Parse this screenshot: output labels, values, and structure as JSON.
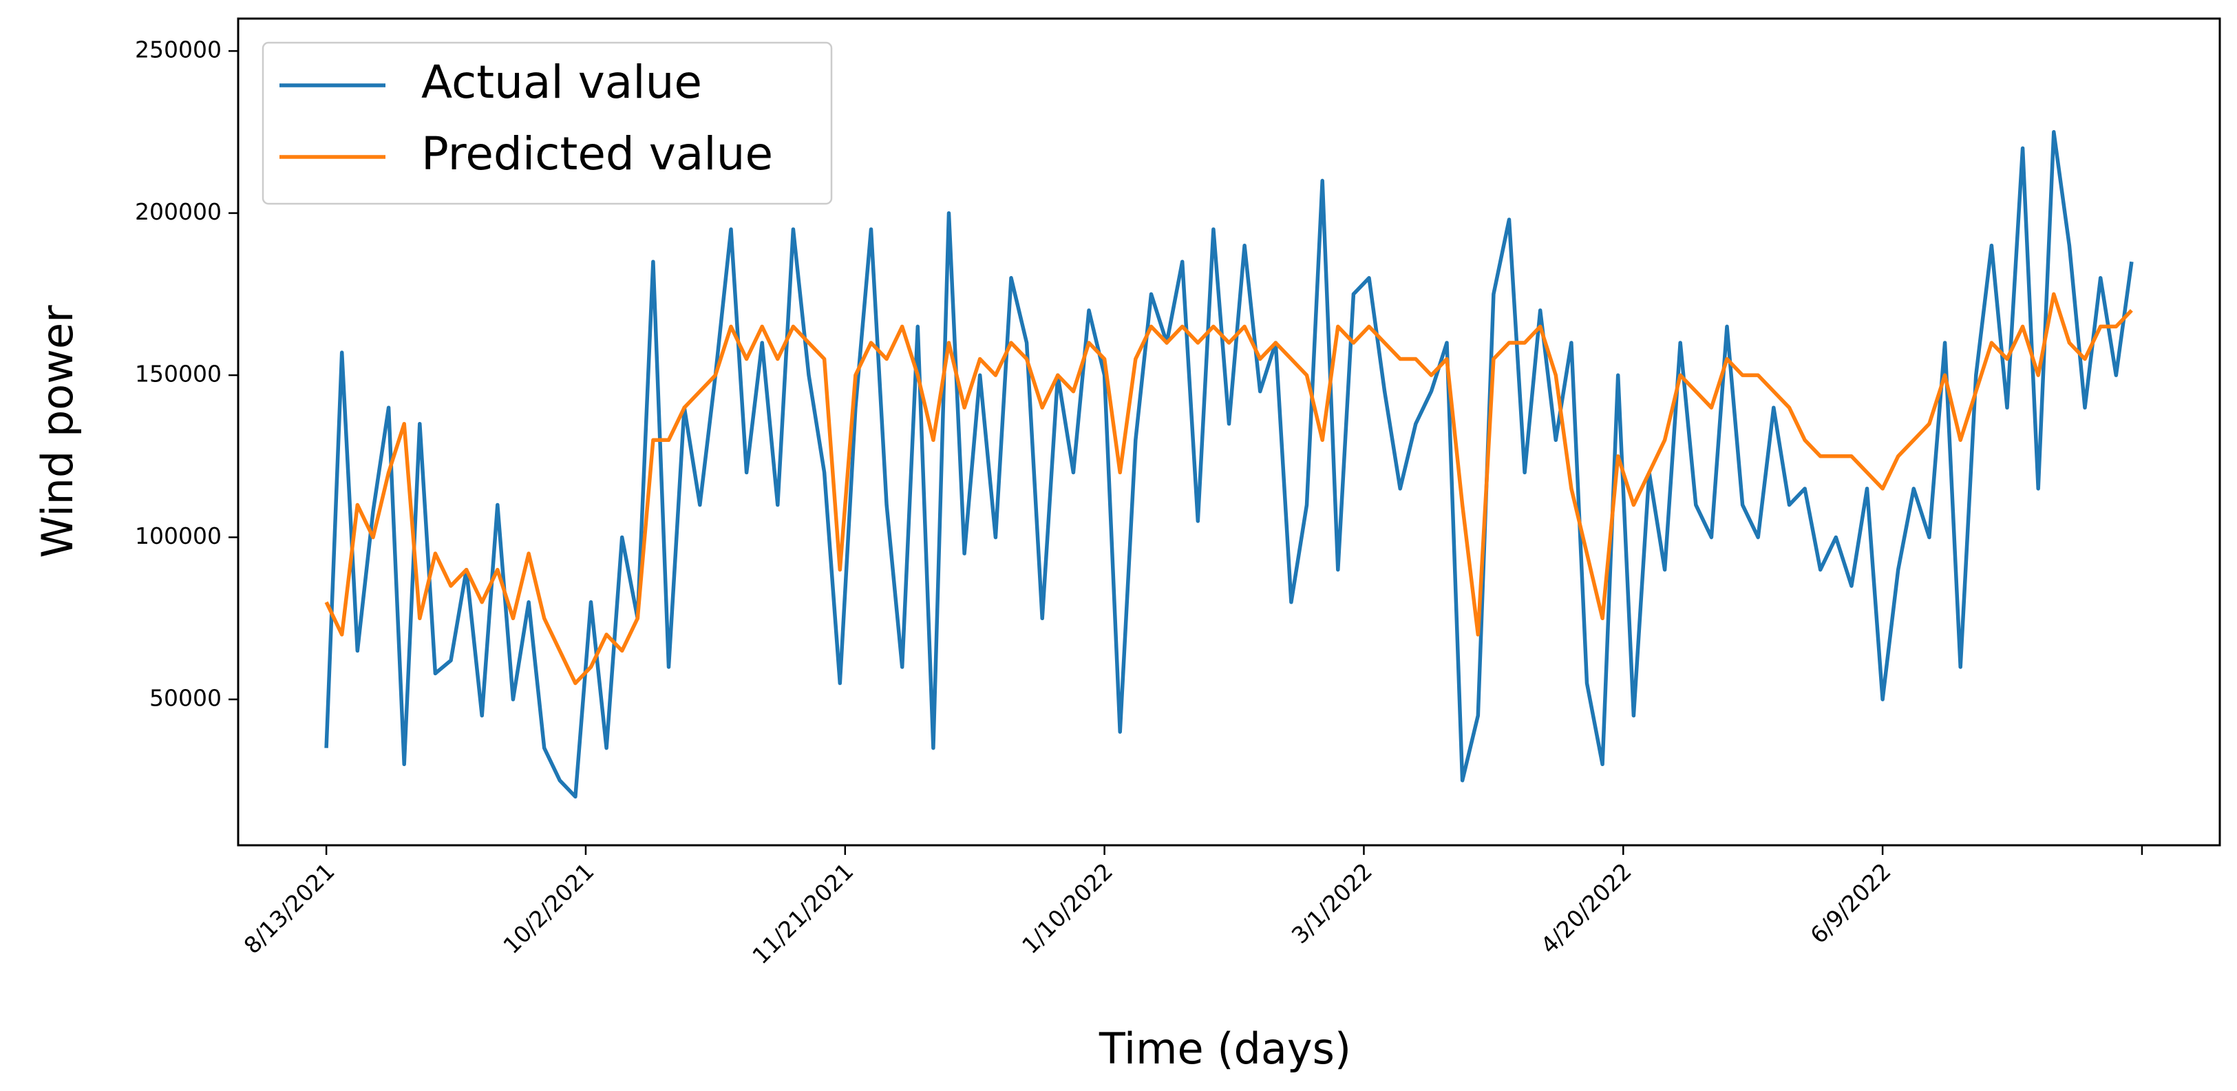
{
  "chart_data": {
    "type": "line",
    "xlabel": "Time (days)",
    "ylabel": "Wind power",
    "x": [
      "2021-08-13",
      "2021-08-16",
      "2021-08-19",
      "2021-08-22",
      "2021-08-25",
      "2021-08-28",
      "2021-08-31",
      "2021-09-03",
      "2021-09-06",
      "2021-09-09",
      "2021-09-12",
      "2021-09-15",
      "2021-09-18",
      "2021-09-21",
      "2021-09-24",
      "2021-09-27",
      "2021-09-30",
      "2021-10-03",
      "2021-10-06",
      "2021-10-09",
      "2021-10-12",
      "2021-10-15",
      "2021-10-18",
      "2021-10-21",
      "2021-10-24",
      "2021-10-27",
      "2021-10-30",
      "2021-11-02",
      "2021-11-05",
      "2021-11-08",
      "2021-11-11",
      "2021-11-14",
      "2021-11-17",
      "2021-11-20",
      "2021-11-23",
      "2021-11-26",
      "2021-11-29",
      "2021-12-02",
      "2021-12-05",
      "2021-12-08",
      "2021-12-11",
      "2021-12-14",
      "2021-12-17",
      "2021-12-20",
      "2021-12-23",
      "2021-12-26",
      "2021-12-29",
      "2022-01-01",
      "2022-01-04",
      "2022-01-07",
      "2022-01-10",
      "2022-01-13",
      "2022-01-16",
      "2022-01-19",
      "2022-01-22",
      "2022-01-25",
      "2022-01-28",
      "2022-01-31",
      "2022-02-03",
      "2022-02-06",
      "2022-02-09",
      "2022-02-12",
      "2022-02-15",
      "2022-02-18",
      "2022-02-21",
      "2022-02-24",
      "2022-02-27",
      "2022-03-02",
      "2022-03-05",
      "2022-03-08",
      "2022-03-11",
      "2022-03-14",
      "2022-03-17",
      "2022-03-20",
      "2022-03-23",
      "2022-03-26",
      "2022-03-29",
      "2022-04-01",
      "2022-04-04",
      "2022-04-07",
      "2022-04-10",
      "2022-04-13",
      "2022-04-16",
      "2022-04-19",
      "2022-04-22",
      "2022-04-25",
      "2022-04-28",
      "2022-05-01",
      "2022-05-04",
      "2022-05-07",
      "2022-05-10",
      "2022-05-13",
      "2022-05-16",
      "2022-05-19",
      "2022-05-22",
      "2022-05-25",
      "2022-05-28",
      "2022-05-31",
      "2022-06-03",
      "2022-06-06",
      "2022-06-09",
      "2022-06-12",
      "2022-06-15",
      "2022-06-18",
      "2022-06-21",
      "2022-06-24",
      "2022-06-27",
      "2022-06-30",
      "2022-07-03",
      "2022-07-06",
      "2022-07-09",
      "2022-07-12",
      "2022-07-15",
      "2022-07-18",
      "2022-07-21",
      "2022-07-24",
      "2022-07-27"
    ],
    "series": [
      {
        "name": "Actual value",
        "color": "#1f77b4",
        "values": [
          35000,
          157000,
          65000,
          108000,
          140000,
          30000,
          135000,
          58000,
          62000,
          90000,
          45000,
          110000,
          50000,
          80000,
          35000,
          25000,
          20000,
          80000,
          35000,
          100000,
          75000,
          185000,
          60000,
          140000,
          110000,
          150000,
          195000,
          120000,
          160000,
          110000,
          195000,
          150000,
          120000,
          55000,
          140000,
          195000,
          110000,
          60000,
          165000,
          35000,
          200000,
          95000,
          150000,
          100000,
          180000,
          160000,
          75000,
          150000,
          120000,
          170000,
          150000,
          40000,
          130000,
          175000,
          160000,
          185000,
          105000,
          195000,
          135000,
          190000,
          145000,
          160000,
          80000,
          110000,
          210000,
          90000,
          175000,
          180000,
          145000,
          115000,
          135000,
          145000,
          160000,
          25000,
          45000,
          175000,
          198000,
          120000,
          170000,
          130000,
          160000,
          55000,
          30000,
          150000,
          45000,
          120000,
          90000,
          160000,
          110000,
          100000,
          165000,
          110000,
          100000,
          140000,
          110000,
          115000,
          90000,
          100000,
          85000,
          115000,
          50000,
          90000,
          115000,
          100000,
          160000,
          60000,
          150000,
          190000,
          140000,
          220000,
          115000,
          225000,
          190000,
          140000,
          180000,
          150000,
          185000
        ]
      },
      {
        "name": "Predicted value",
        "color": "#ff7f0e",
        "values": [
          80000,
          70000,
          110000,
          100000,
          120000,
          135000,
          75000,
          95000,
          85000,
          90000,
          80000,
          90000,
          75000,
          95000,
          75000,
          65000,
          55000,
          60000,
          70000,
          65000,
          75000,
          130000,
          130000,
          140000,
          145000,
          150000,
          165000,
          155000,
          165000,
          155000,
          165000,
          160000,
          155000,
          90000,
          150000,
          160000,
          155000,
          165000,
          150000,
          130000,
          160000,
          140000,
          155000,
          150000,
          160000,
          155000,
          140000,
          150000,
          145000,
          160000,
          155000,
          120000,
          155000,
          165000,
          160000,
          165000,
          160000,
          165000,
          160000,
          165000,
          155000,
          160000,
          155000,
          150000,
          130000,
          165000,
          160000,
          165000,
          160000,
          155000,
          155000,
          150000,
          155000,
          110000,
          70000,
          155000,
          160000,
          160000,
          165000,
          150000,
          115000,
          95000,
          75000,
          125000,
          110000,
          120000,
          130000,
          150000,
          145000,
          140000,
          155000,
          150000,
          150000,
          145000,
          140000,
          130000,
          125000,
          125000,
          125000,
          120000,
          115000,
          125000,
          130000,
          135000,
          150000,
          130000,
          145000,
          160000,
          155000,
          165000,
          150000,
          175000,
          160000,
          155000,
          165000,
          165000,
          170000
        ]
      }
    ],
    "xlim": [
      "2021-07-27",
      "2022-08-13"
    ],
    "xticks": [
      {
        "value": "2021-08-13",
        "label": "8/13/2021"
      },
      {
        "value": "2021-10-02",
        "label": "10/2/2021"
      },
      {
        "value": "2021-11-21",
        "label": "11/21/2021"
      },
      {
        "value": "2022-01-10",
        "label": "1/10/2022"
      },
      {
        "value": "2022-03-01",
        "label": "3/1/2022"
      },
      {
        "value": "2022-04-20",
        "label": "4/20/2022"
      },
      {
        "value": "2022-06-09",
        "label": "6/9/2022"
      },
      {
        "value": "2022-07-29",
        "label": null
      }
    ],
    "ylim": [
      5000,
      260000
    ],
    "yticks": [
      50000,
      100000,
      150000,
      200000,
      250000
    ],
    "legend": "upper left",
    "grid": false
  }
}
